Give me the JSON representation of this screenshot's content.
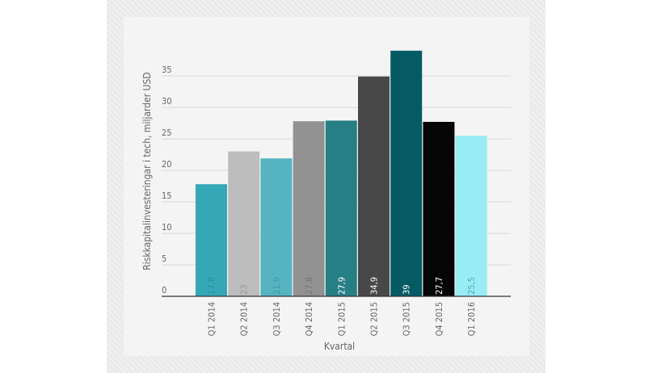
{
  "chart_data": {
    "type": "bar",
    "categories": [
      "Q1 2014",
      "Q2 2014",
      "Q3 2014",
      "Q4 2014",
      "Q1 2015",
      "Q2 2015",
      "Q3 2015",
      "Q4 2015",
      "Q1 2016"
    ],
    "values": [
      17.8,
      23,
      21.9,
      27.8,
      27.9,
      34.9,
      39,
      27.7,
      25.5
    ],
    "value_labels": [
      "17,8",
      "23",
      "21,9",
      "27,8",
      "27,9",
      "34,9",
      "39",
      "27,7",
      "25,5"
    ],
    "colors": [
      "#35a8b7",
      "#bdbdbd",
      "#56b4c1",
      "#929292",
      "#277f86",
      "#484848",
      "#045b63",
      "#050505",
      "#98ecf6"
    ],
    "label_colors": [
      "#2b8e9b",
      "#999999",
      "#3f98a4",
      "#777777",
      "#ffffff",
      "#ffffff",
      "#ffffff",
      "#ffffff",
      "#56a8b3"
    ],
    "xlabel": "Kvartal",
    "ylabel": "Riskkapitalinvesteringar i tech, miljarder USD",
    "yticks": [
      0,
      5,
      10,
      15,
      20,
      25,
      30,
      35
    ],
    "ylim": [
      0,
      39
    ],
    "grid": true,
    "legend": "none"
  }
}
